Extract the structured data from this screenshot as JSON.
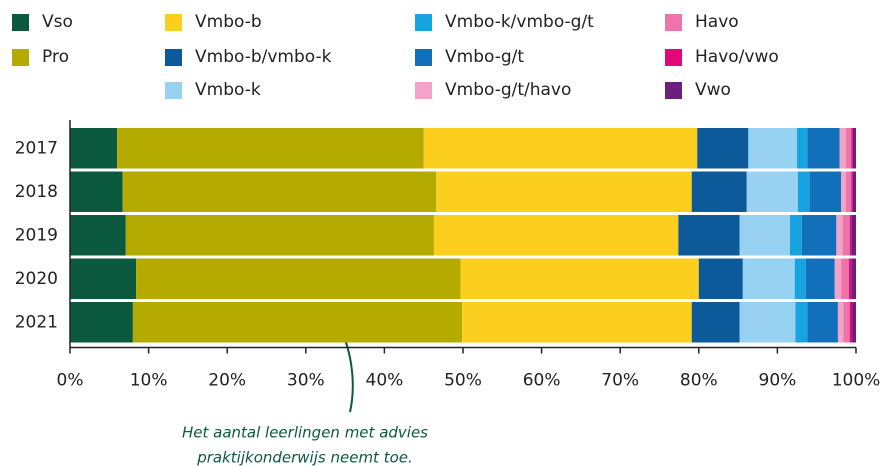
{
  "chart_data": {
    "type": "stacked-barh",
    "categories": [
      "2017",
      "2018",
      "2019",
      "2020",
      "2021"
    ],
    "series": [
      {
        "name": "Vso",
        "color": "#0b5a3f",
        "values": [
          6.0,
          6.7,
          7.1,
          8.4,
          8.0
        ]
      },
      {
        "name": "Pro",
        "color": "#b5aa00",
        "values": [
          39.0,
          39.9,
          39.2,
          41.3,
          41.9
        ]
      },
      {
        "name": "Vmbo-b",
        "color": "#fccf1f",
        "values": [
          34.8,
          32.5,
          31.1,
          30.3,
          29.2
        ]
      },
      {
        "name": "Vmbo-b/vmbo-k",
        "color": "#0d5a9a",
        "values": [
          6.5,
          7.0,
          7.8,
          5.6,
          6.1
        ]
      },
      {
        "name": "Vmbo-k",
        "color": "#97d2f2",
        "values": [
          6.2,
          6.5,
          6.4,
          6.6,
          7.1
        ]
      },
      {
        "name": "Vmbo-k/vmbo-g/t",
        "color": "#17a2e0",
        "values": [
          1.3,
          1.5,
          1.5,
          1.4,
          1.5
        ]
      },
      {
        "name": "Vmbo-g/t",
        "color": "#1270ba",
        "values": [
          4.1,
          4.0,
          4.4,
          3.7,
          3.9
        ]
      },
      {
        "name": "Vmbo-g/t/havo",
        "color": "#f3a3c8",
        "values": [
          0.8,
          0.6,
          0.8,
          0.8,
          0.7
        ]
      },
      {
        "name": "Havo",
        "color": "#ee74a9",
        "values": [
          0.7,
          0.7,
          0.9,
          1.0,
          0.8
        ]
      },
      {
        "name": "Havo/vwo",
        "color": "#e0087a",
        "values": [
          0.2,
          0.2,
          0.2,
          0.3,
          0.3
        ]
      },
      {
        "name": "Vwo",
        "color": "#6c1f7e",
        "values": [
          0.4,
          0.4,
          0.6,
          0.6,
          0.5
        ]
      }
    ],
    "xlim": [
      0,
      100
    ],
    "xticks": [
      {
        "value": 0,
        "label": "0%"
      },
      {
        "value": 10,
        "label": "10%"
      },
      {
        "value": 20,
        "label": "20%"
      },
      {
        "value": 30,
        "label": "30%"
      },
      {
        "value": 40,
        "label": "40%"
      },
      {
        "value": 50,
        "label": "50%"
      },
      {
        "value": 60,
        "label": "60%"
      },
      {
        "value": 70,
        "label": "70%"
      },
      {
        "value": 80,
        "label": "80%"
      },
      {
        "value": 90,
        "label": "90%"
      },
      {
        "value": 100,
        "label": "100%"
      }
    ],
    "annotation": [
      "Het aantal leerlingen met advies",
      "praktijkonderwijs neemt toe."
    ]
  }
}
